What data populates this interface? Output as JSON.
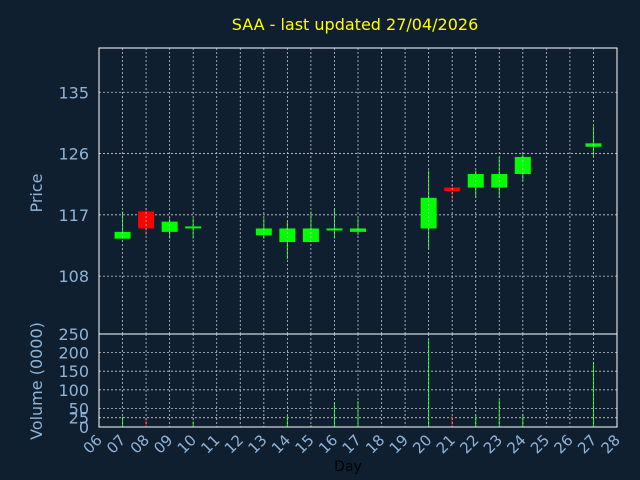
{
  "title": "SAA - last updated 27/04/2026",
  "colors": {
    "background": "#0f1f30",
    "title": "#ffff00",
    "axis_text": "#8fb4d8",
    "frame": "#ffffff",
    "grid": "#c8c8c8",
    "up": "#00ff00",
    "down": "#ff0000",
    "xlabel": "#000000"
  },
  "chart_data": [
    {
      "type": "candlestick",
      "ylabel": "Price",
      "ylim": [
        99.5,
        141.5
      ],
      "yticks": [
        108,
        117,
        126,
        135
      ],
      "x": [
        "07",
        "08",
        "09",
        "10",
        "13",
        "14",
        "15",
        "16",
        "17",
        "20",
        "21",
        "22",
        "23",
        "24",
        "27"
      ],
      "open": [
        113.5,
        117.5,
        114.5,
        115.3,
        114.0,
        113.0,
        113.0,
        115.0,
        114.5,
        115.0,
        121.0,
        121.0,
        121.0,
        123.0,
        127.0
      ],
      "high": [
        117.5,
        118.0,
        116.5,
        116.5,
        116.5,
        116.0,
        117.5,
        118.0,
        116.5,
        123.5,
        121.5,
        123.5,
        125.5,
        126.0,
        130.0
      ],
      "low": [
        113.5,
        114.0,
        113.5,
        113.5,
        113.5,
        110.5,
        113.0,
        113.5,
        114.0,
        112.0,
        119.0,
        119.5,
        119.5,
        122.0,
        125.5
      ],
      "close": [
        114.5,
        115.0,
        116.0,
        115.3,
        115.0,
        115.0,
        115.0,
        115.0,
        115.0,
        119.5,
        120.5,
        123.0,
        123.0,
        125.5,
        127.5
      ]
    },
    {
      "type": "bar",
      "xlabel": "Day",
      "ylabel": "Volume (0000)",
      "ylim": [
        0,
        250
      ],
      "yticks": [
        0,
        25,
        50,
        100,
        150,
        200,
        250
      ],
      "x": [
        "07",
        "08",
        "09",
        "10",
        "13",
        "14",
        "15",
        "16",
        "17",
        "20",
        "21",
        "22",
        "23",
        "24",
        "27"
      ],
      "values": [
        28,
        25,
        3,
        15,
        3,
        30,
        5,
        65,
        70,
        235,
        28,
        32,
        72,
        35,
        175
      ],
      "direction": [
        "up",
        "down",
        "up",
        "up",
        "up",
        "up",
        "up",
        "up",
        "up",
        "up",
        "down",
        "up",
        "up",
        "up",
        "up"
      ]
    }
  ],
  "x_axis_labels": [
    "06",
    "07",
    "08",
    "09",
    "10",
    "11",
    "12",
    "13",
    "14",
    "15",
    "16",
    "17",
    "18",
    "19",
    "20",
    "21",
    "22",
    "23",
    "24",
    "25",
    "26",
    "27",
    "28"
  ]
}
